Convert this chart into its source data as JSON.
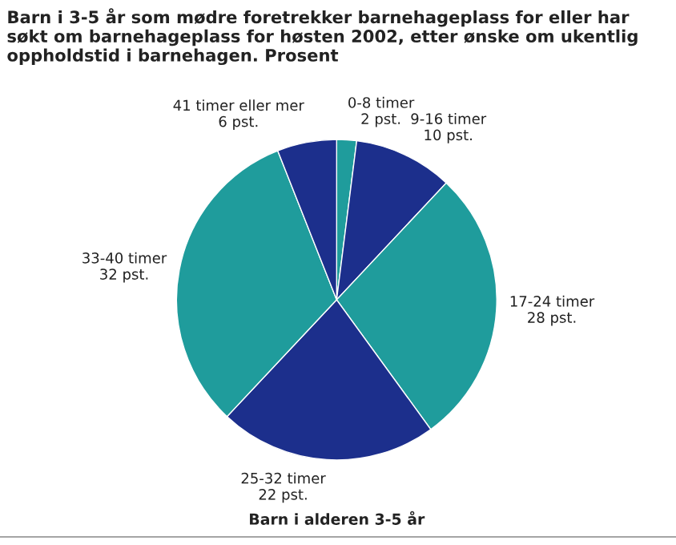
{
  "chart_data": {
    "type": "pie",
    "title": "Barn i 3-5 år som mødre foretrekker barnehageplass for eller har\nsøkt om barnehageplass for høsten 2002, etter ønske om ukentlig\noppholdstid i barnehagen. Prosent",
    "xlabel": "Barn i alderen 3-5 år",
    "categories": [
      "0-8 timer",
      "9-16 timer",
      "17-24 timer",
      "25-32 timer",
      "33-40 timer",
      "41 timer eller mer"
    ],
    "values": [
      2,
      10,
      28,
      22,
      32,
      6
    ],
    "value_labels": [
      "2 pst.",
      "10 pst.",
      "28 pst.",
      "22 pst.",
      "32 pst.",
      "6 pst."
    ],
    "colors": [
      "#1f9c9c",
      "#1c2f8c",
      "#1f9c9c",
      "#1c2f8c",
      "#1f9c9c",
      "#1c2f8c"
    ]
  }
}
